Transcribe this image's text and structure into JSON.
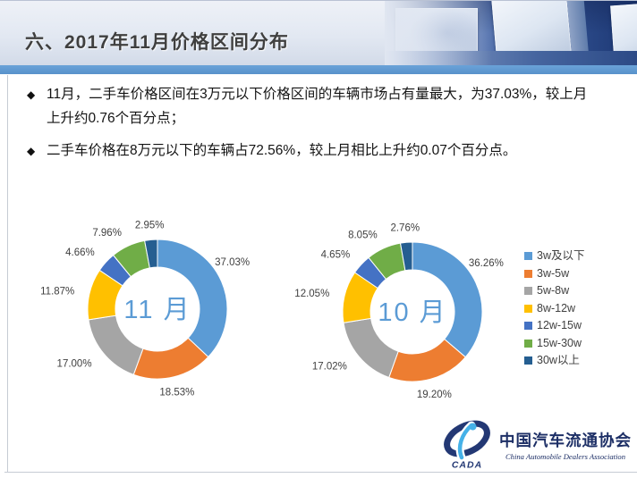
{
  "slide": {
    "title": "六、2017年11月价格区间分布"
  },
  "bullets": {
    "marker": "◆",
    "items": [
      "11月，二手车价格区间在3万元以下价格区间的车辆市场占有量最大，为37.03%，较上月上升约0.76个百分点；",
      "二手车价格在8万元以下的车辆占72.56%，较上月相比上升约0.07个百分点。"
    ]
  },
  "palette": {
    "accent_bar": "#5B96CE",
    "label_text": "#404040",
    "center_label": "#5B9BD5"
  },
  "chart_data": [
    {
      "type": "pie",
      "subtype": "donut",
      "title": "11 月",
      "categories": [
        "3w及以下",
        "3w-5w",
        "5w-8w",
        "8w-12w",
        "12w-15w",
        "15w-30w",
        "30w以上"
      ],
      "values": [
        37.03,
        18.53,
        17.0,
        11.87,
        4.66,
        7.96,
        2.95
      ],
      "labels": [
        "37.03%",
        "18.53%",
        "17.00%",
        "11.87%",
        "4.66%",
        "7.96%",
        "2.95%"
      ],
      "colors": [
        "#5B9BD5",
        "#ED7D31",
        "#A5A5A5",
        "#FFC000",
        "#4472C4",
        "#70AD47",
        "#255E91"
      ],
      "legend_position": "none"
    },
    {
      "type": "pie",
      "subtype": "donut",
      "title": "10 月",
      "categories": [
        "3w及以下",
        "3w-5w",
        "5w-8w",
        "8w-12w",
        "12w-15w",
        "15w-30w",
        "30w以上"
      ],
      "values": [
        36.26,
        19.2,
        17.02,
        12.05,
        4.65,
        8.05,
        2.76
      ],
      "labels": [
        "36.26%",
        "19.20%",
        "17.02%",
        "12.05%",
        "4.65%",
        "8.05%",
        "2.76%"
      ],
      "colors": [
        "#5B9BD5",
        "#ED7D31",
        "#A5A5A5",
        "#FFC000",
        "#4472C4",
        "#70AD47",
        "#255E91"
      ],
      "legend_position": "right"
    }
  ],
  "legend": {
    "items": [
      {
        "label": "3w及以下",
        "color": "#5B9BD5"
      },
      {
        "label": "3w-5w",
        "color": "#ED7D31"
      },
      {
        "label": "5w-8w",
        "color": "#A5A5A5"
      },
      {
        "label": "8w-12w",
        "color": "#FFC000"
      },
      {
        "label": "12w-15w",
        "color": "#4472C4"
      },
      {
        "label": "15w-30w",
        "color": "#70AD47"
      },
      {
        "label": "30w以上",
        "color": "#255E91"
      }
    ]
  },
  "footer": {
    "logo_acronym": "CADA",
    "org_name_cn": "中国汽车流通协会",
    "org_name_en": "China Automobile Dealers Association"
  }
}
